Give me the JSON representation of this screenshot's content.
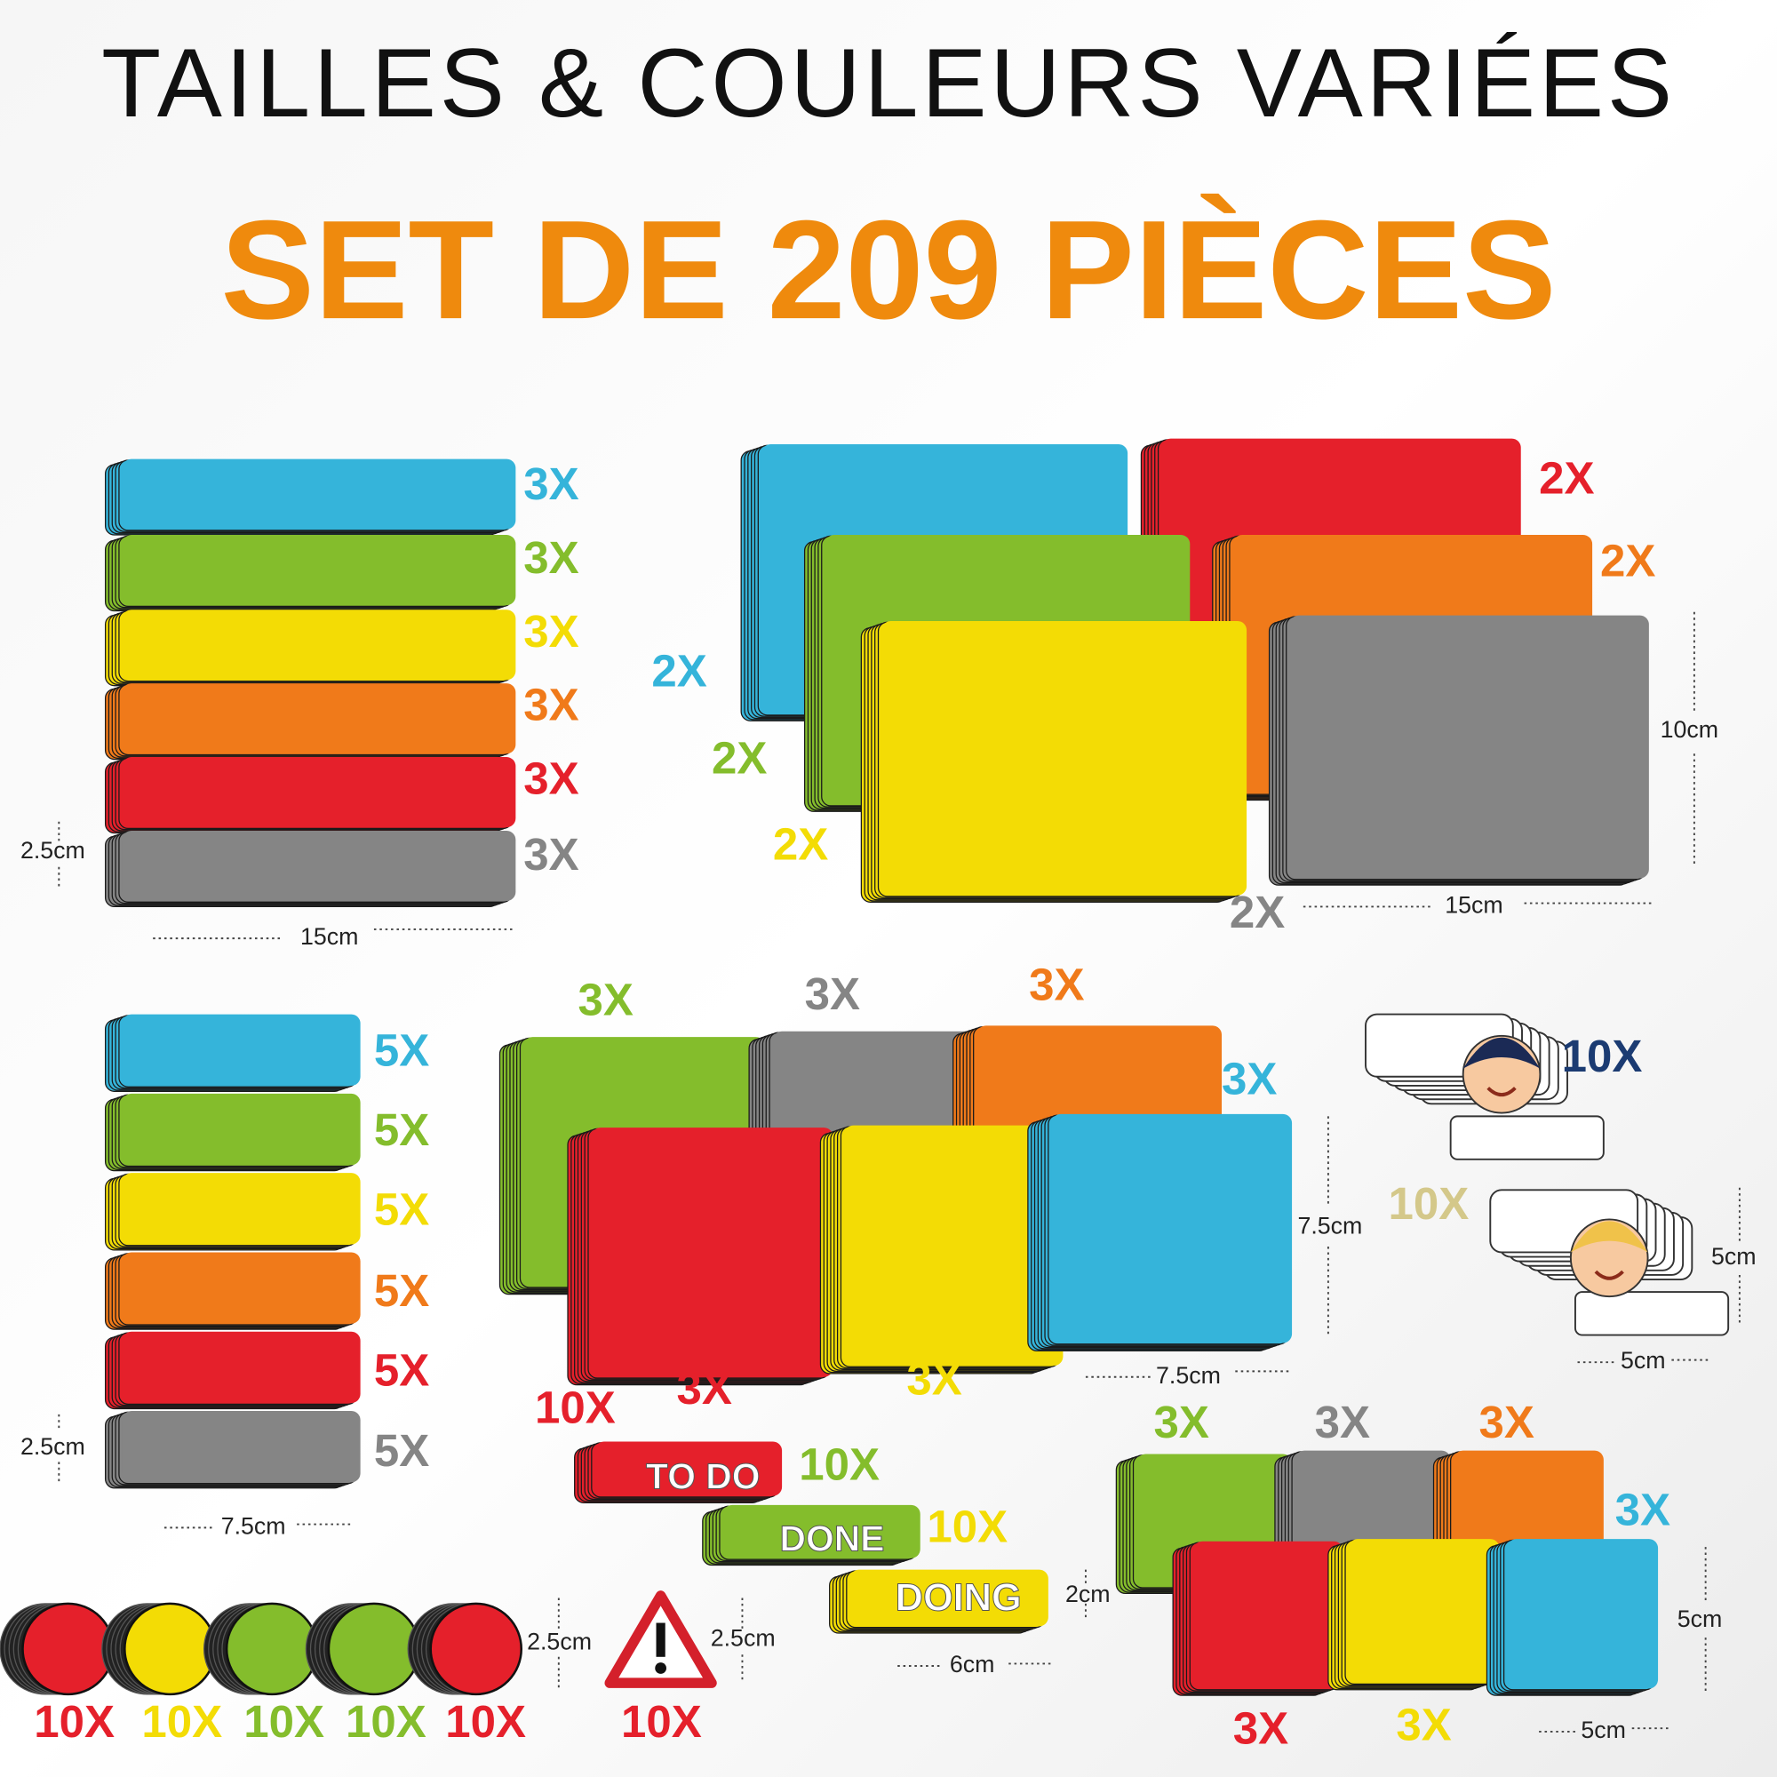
{
  "header": {
    "title": "TAILLES & COULEURS VARIÉES",
    "subtitle": "SET DE 209 PIÈCES"
  },
  "labels": [
    "3X",
    "3X",
    "3X",
    "3X",
    "3X",
    "3X",
    "2.5cm",
    "15cm",
    "2X",
    "2X",
    "2X",
    "2X",
    "2X",
    "2X",
    "10cm",
    "15cm",
    "5X",
    "5X",
    "5X",
    "5X",
    "5X",
    "5X",
    "2.5cm",
    "7.5cm",
    "3X",
    "3X",
    "3X",
    "3X",
    "3X",
    "3X",
    "7.5cm",
    "7.5cm",
    "10X",
    "10X",
    "5cm",
    "5cm",
    "10X",
    "TO DO",
    "10X",
    "DONE",
    "10X",
    "DOING",
    "2cm",
    "6cm",
    "3X",
    "3X",
    "3X",
    "3X",
    "3X",
    "3X",
    "5cm",
    "5cm",
    "10X",
    "10X",
    "10X",
    "10X",
    "10X",
    "2.5cm",
    "10X",
    "2.5cm"
  ]
}
